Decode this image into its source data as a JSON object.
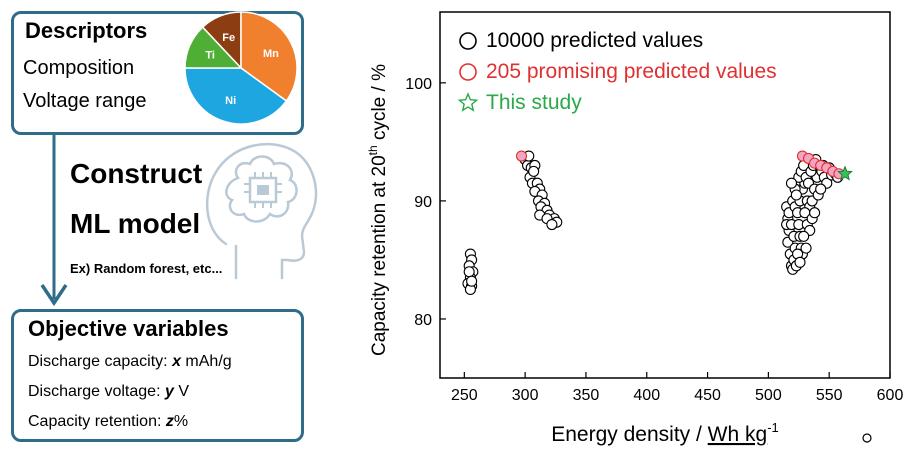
{
  "left_panel": {
    "descriptors": {
      "title": "Descriptors",
      "items": [
        "Composition",
        "Voltage range"
      ],
      "pie": [
        {
          "label": "Fe",
          "value": 12,
          "color": "#8c3d12"
        },
        {
          "label": "Mn",
          "value": 35,
          "color": "#f07f2e"
        },
        {
          "label": "Ni",
          "value": 40,
          "color": "#1ea6e0"
        },
        {
          "label": "Ti",
          "value": 13,
          "color": "#4fae35"
        }
      ]
    },
    "model": {
      "line1": "Construct",
      "line2": "ML model",
      "example": "Ex) Random forest, etc..."
    },
    "objectives": {
      "title": "Objective variables",
      "rows": [
        {
          "prefix": "Discharge capacity: ",
          "var": "x",
          "unit": " mAh/g"
        },
        {
          "prefix": "Discharge voltage: ",
          "var": "y",
          "unit": " V"
        },
        {
          "prefix": "Capacity retention: ",
          "var": "z",
          "unit": "%"
        }
      ]
    },
    "colors": {
      "box_border": "#2f6c8a",
      "arrow": "#2f6c8a",
      "brain": "#b9c9d6"
    }
  },
  "chart_data": {
    "type": "scatter",
    "xlabel_main": "Energy density / ",
    "xlabel_unit": "Wh kg",
    "xlabel_sup": "-1",
    "ylabel_pre": "Capacity retention at 20",
    "ylabel_sup": "th",
    "ylabel_post": " cycle  / %",
    "xlim": [
      230,
      600
    ],
    "ylim": [
      75,
      106
    ],
    "xticks": [
      250,
      300,
      350,
      400,
      450,
      500,
      550,
      600
    ],
    "yticks": [
      80,
      90,
      100
    ],
    "legend": [
      {
        "label": "10000 predicted values",
        "marker": "circle",
        "color": "#000000"
      },
      {
        "label": "205 promising predicted values",
        "marker": "circle",
        "color": "#e03030"
      },
      {
        "label": "This study",
        "marker": "star",
        "color": "#2aa84a"
      }
    ],
    "series": [
      {
        "name": "10000 predicted values",
        "color": "#000000",
        "points": [
          [
            255,
            85.5
          ],
          [
            256,
            85
          ],
          [
            254,
            84.5
          ],
          [
            257,
            84
          ],
          [
            255,
            83.5
          ],
          [
            253,
            83
          ],
          [
            256,
            82.8
          ],
          [
            255,
            82.5
          ],
          [
            254,
            84
          ],
          [
            256,
            83.2
          ],
          [
            300,
            93.5
          ],
          [
            302,
            93
          ],
          [
            305,
            92.8
          ],
          [
            308,
            93
          ],
          [
            304,
            92
          ],
          [
            306,
            91.5
          ],
          [
            310,
            91.5
          ],
          [
            312,
            91
          ],
          [
            308,
            90.8
          ],
          [
            314,
            90.5
          ],
          [
            311,
            90
          ],
          [
            316,
            89.8
          ],
          [
            313,
            89.5
          ],
          [
            318,
            89.2
          ],
          [
            312,
            88.8
          ],
          [
            320,
            88.8
          ],
          [
            324,
            88.5
          ],
          [
            326,
            88.2
          ],
          [
            318,
            88.5
          ],
          [
            322,
            88
          ],
          [
            303,
            93.8
          ],
          [
            307,
            92.5
          ],
          [
            515,
            89.5
          ],
          [
            516,
            88.5
          ],
          [
            517,
            87.5
          ],
          [
            516,
            86.5
          ],
          [
            518,
            85.5
          ],
          [
            519,
            84.5
          ],
          [
            520,
            84.2
          ],
          [
            515,
            88
          ],
          [
            517,
            89
          ],
          [
            519,
            88
          ],
          [
            521,
            87
          ],
          [
            522,
            86
          ],
          [
            521,
            85
          ],
          [
            523,
            84.5
          ],
          [
            520,
            90
          ],
          [
            522,
            89.5
          ],
          [
            524,
            89
          ],
          [
            525,
            88
          ],
          [
            526,
            87
          ],
          [
            527,
            86
          ],
          [
            528,
            85.5
          ],
          [
            524,
            85.5
          ],
          [
            526,
            90
          ],
          [
            528,
            91
          ],
          [
            530,
            91.5
          ],
          [
            525,
            92
          ],
          [
            527,
            92.5
          ],
          [
            529,
            93
          ],
          [
            531,
            92
          ],
          [
            533,
            91.5
          ],
          [
            532,
            90
          ],
          [
            534,
            89.5
          ],
          [
            536,
            90
          ],
          [
            538,
            91
          ],
          [
            540,
            92
          ],
          [
            535,
            92.5
          ],
          [
            537,
            93
          ],
          [
            539,
            93.5
          ],
          [
            542,
            93
          ],
          [
            544,
            92.5
          ],
          [
            546,
            92
          ],
          [
            548,
            91.5
          ],
          [
            522,
            91
          ],
          [
            519,
            91.5
          ],
          [
            523,
            90.5
          ],
          [
            530,
            89
          ],
          [
            532,
            88
          ],
          [
            534,
            87.5
          ],
          [
            529,
            87
          ],
          [
            531,
            86
          ],
          [
            526,
            84.8
          ],
          [
            536,
            88.5
          ],
          [
            538,
            89
          ],
          [
            541,
            90.5
          ],
          [
            543,
            91
          ],
          [
            550,
            92.8
          ],
          [
            552,
            92.2
          ],
          [
            555,
            92.3
          ],
          [
            557,
            92
          ],
          [
            545,
            93
          ]
        ]
      },
      {
        "name": "205 promising predicted values",
        "color": "#e03030",
        "points": [
          [
            297,
            93.8
          ],
          [
            528,
            93.8
          ],
          [
            533,
            93.6
          ],
          [
            538,
            93.2
          ],
          [
            543,
            93
          ],
          [
            548,
            92.8
          ],
          [
            553,
            92.5
          ],
          [
            558,
            92.3
          ]
        ]
      },
      {
        "name": "This study",
        "color": "#2aa84a",
        "points": [
          [
            563,
            92.3
          ]
        ]
      }
    ]
  }
}
